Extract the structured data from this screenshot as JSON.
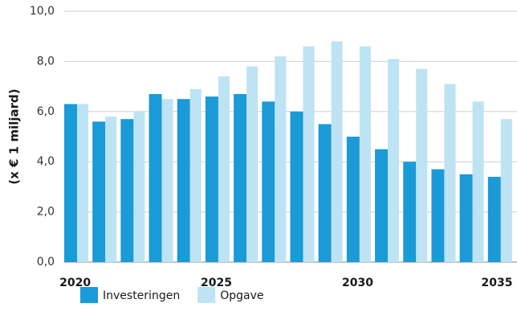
{
  "chart_data": {
    "type": "bar",
    "y_label": "(x € 1 miljard)",
    "categories": [
      "2020",
      null,
      null,
      null,
      null,
      "2025",
      null,
      null,
      null,
      null,
      "2030",
      null,
      null,
      null,
      null,
      "2035"
    ],
    "series": [
      {
        "name": "Investeringen",
        "color": "#1a9ad6",
        "values": [
          6.3,
          5.6,
          5.7,
          6.7,
          6.5,
          6.6,
          6.7,
          6.4,
          6.0,
          5.5,
          5.0,
          4.5,
          4.0,
          3.7,
          3.5,
          3.4
        ]
      },
      {
        "name": "Opgave",
        "color": "#bde3f4",
        "values": [
          6.3,
          5.8,
          6.0,
          6.5,
          6.9,
          7.4,
          7.8,
          8.2,
          8.6,
          8.8,
          8.6,
          8.1,
          7.7,
          7.1,
          6.4,
          5.7
        ]
      }
    ],
    "ylim": [
      0,
      10
    ],
    "yticks": [
      {
        "value": 0,
        "label": "0,0"
      },
      {
        "value": 2,
        "label": "2,0"
      },
      {
        "value": 4,
        "label": "4,0"
      },
      {
        "value": 6,
        "label": "6,0"
      },
      {
        "value": 8,
        "label": "8,0"
      },
      {
        "value": 10,
        "label": "10,0"
      }
    ],
    "grid": true
  }
}
